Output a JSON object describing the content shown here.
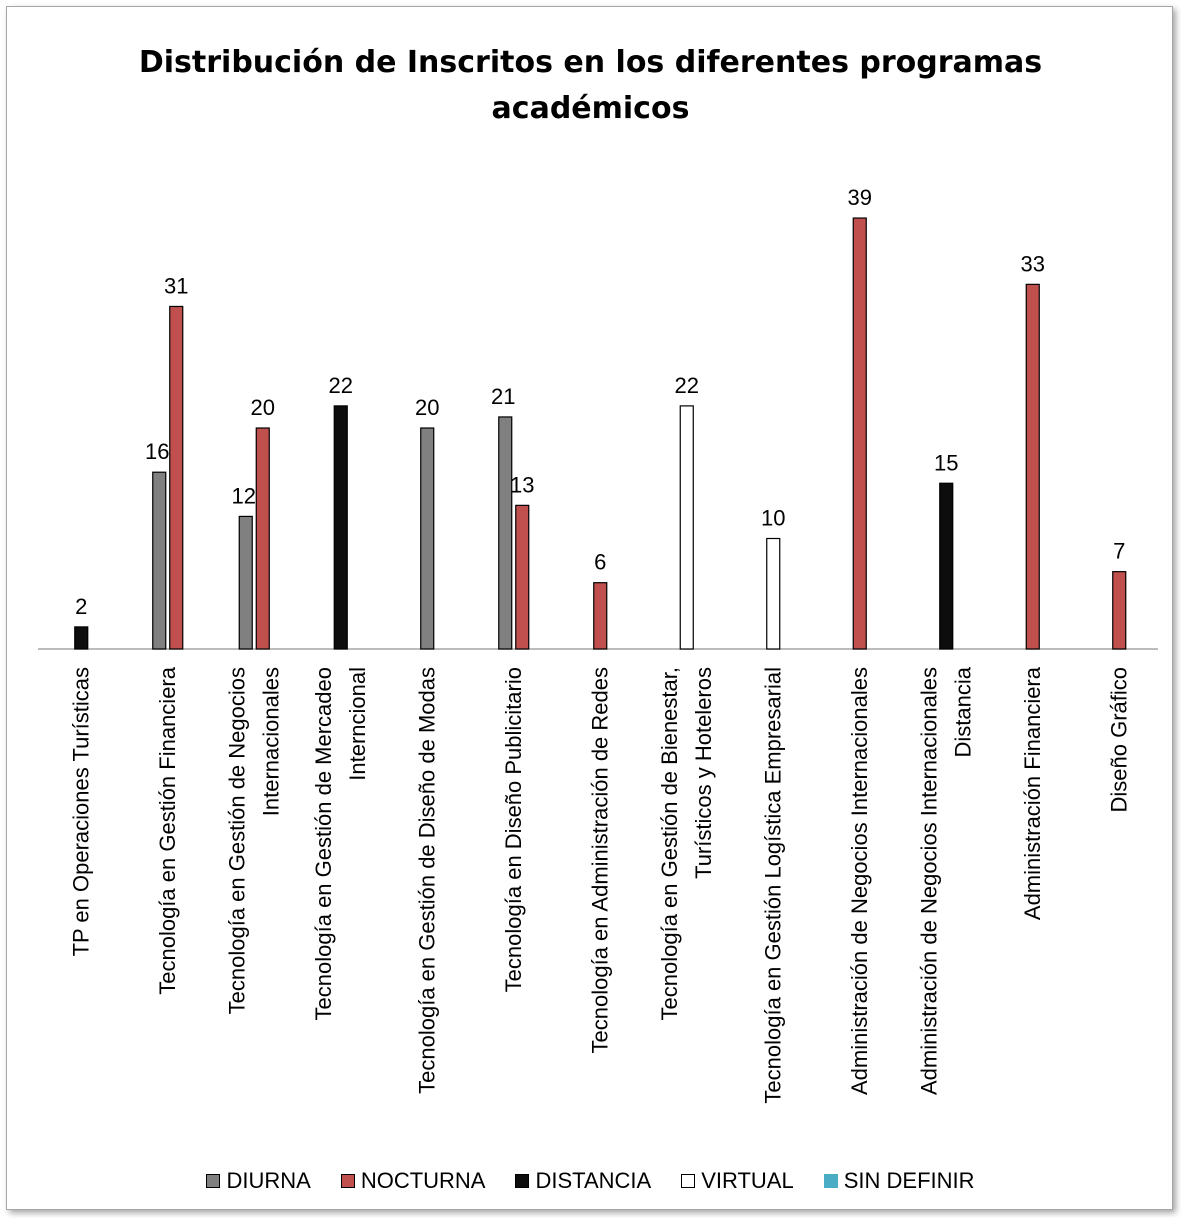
{
  "chart_data": {
    "type": "bar",
    "title_lines": [
      "Distribución de Inscritos en los diferentes programas",
      "académicos"
    ],
    "categories": [
      [
        "TP en Operaciones Turísticas"
      ],
      [
        "Tecnología en Gestión Financiera"
      ],
      [
        "Tecnología en Gestión de Negocios",
        "Internacionales"
      ],
      [
        "Tecnología en Gestión de Mercadeo",
        "Interncional"
      ],
      [
        "Tecnología en Gestión de Diseño de Modas"
      ],
      [
        "Tecnología en Diseño Publicitario"
      ],
      [
        "Tecnología en Administración de Redes"
      ],
      [
        "Tecnología en Gestión de Bienestar,",
        "Turísticos y Hoteleros"
      ],
      [
        "Tecnología en Gestión Logística Empresarial"
      ],
      [
        "Administración de Negocios Internacionales"
      ],
      [
        "Administración de Negocios Internacionales",
        "Distancia"
      ],
      [
        "Administración Financiera"
      ],
      [
        "Diseño Gráfico"
      ]
    ],
    "series": [
      {
        "name": "DIURNA",
        "color": "#808080",
        "values": [
          null,
          16,
          12,
          null,
          20,
          21,
          null,
          null,
          null,
          null,
          null,
          null,
          null
        ]
      },
      {
        "name": "NOCTURNA",
        "color": "#c0504d",
        "values": [
          null,
          31,
          20,
          null,
          null,
          13,
          6,
          null,
          null,
          39,
          null,
          33,
          7
        ]
      },
      {
        "name": "DISTANCIA",
        "color": "#0d0d0d",
        "values": [
          2,
          null,
          null,
          22,
          null,
          null,
          null,
          null,
          null,
          null,
          15,
          null,
          null
        ]
      },
      {
        "name": "VIRTUAL",
        "color": "#ffffff",
        "values": [
          null,
          null,
          null,
          null,
          null,
          null,
          null,
          22,
          10,
          null,
          null,
          null,
          null
        ]
      },
      {
        "name": "SIN DEFINIR",
        "color": "#4bacc6",
        "values": [
          null,
          null,
          null,
          null,
          null,
          null,
          null,
          null,
          null,
          null,
          null,
          null,
          null
        ]
      }
    ],
    "ylim": [
      0,
      40
    ],
    "grid": false,
    "legend_position": "bottom"
  }
}
